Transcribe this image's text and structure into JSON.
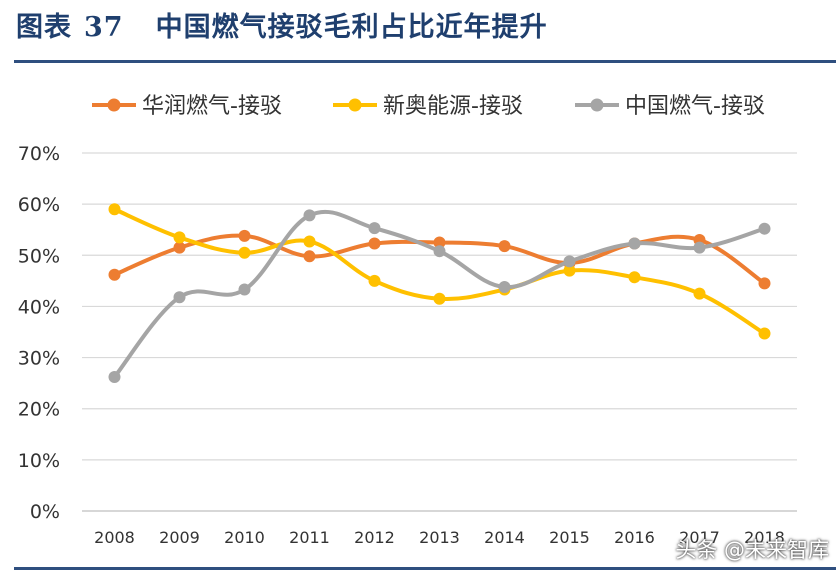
{
  "figure": {
    "label": "图表",
    "number": "37",
    "title": "中国燃气接驳毛利占比近年提升"
  },
  "watermark": "头条 @未来智库",
  "chart_data": {
    "type": "line",
    "categories": [
      "2008",
      "2009",
      "2010",
      "2011",
      "2012",
      "2013",
      "2014",
      "2015",
      "2016",
      "2017",
      "2018"
    ],
    "y_ticks": [
      "0%",
      "10%",
      "20%",
      "30%",
      "40%",
      "50%",
      "60%",
      "70%"
    ],
    "ylim": [
      0,
      70
    ],
    "grid": true,
    "legend_position": "top",
    "series": [
      {
        "name": "华润燃气-接驳",
        "color": "#ed7d31",
        "values": [
          46.2,
          51.5,
          53.8,
          49.8,
          52.3,
          52.5,
          51.8,
          48.5,
          52.3,
          53.0,
          44.5
        ]
      },
      {
        "name": "新奥能源-接驳",
        "color": "#ffc000",
        "values": [
          59.0,
          53.5,
          50.5,
          52.7,
          45.0,
          41.5,
          43.3,
          47.0,
          45.7,
          42.5,
          34.7
        ]
      },
      {
        "name": "中国燃气-接驳",
        "color": "#a5a5a5",
        "values": [
          26.2,
          41.8,
          43.3,
          57.8,
          55.3,
          50.8,
          43.8,
          48.8,
          52.3,
          51.5,
          55.2
        ]
      }
    ]
  }
}
